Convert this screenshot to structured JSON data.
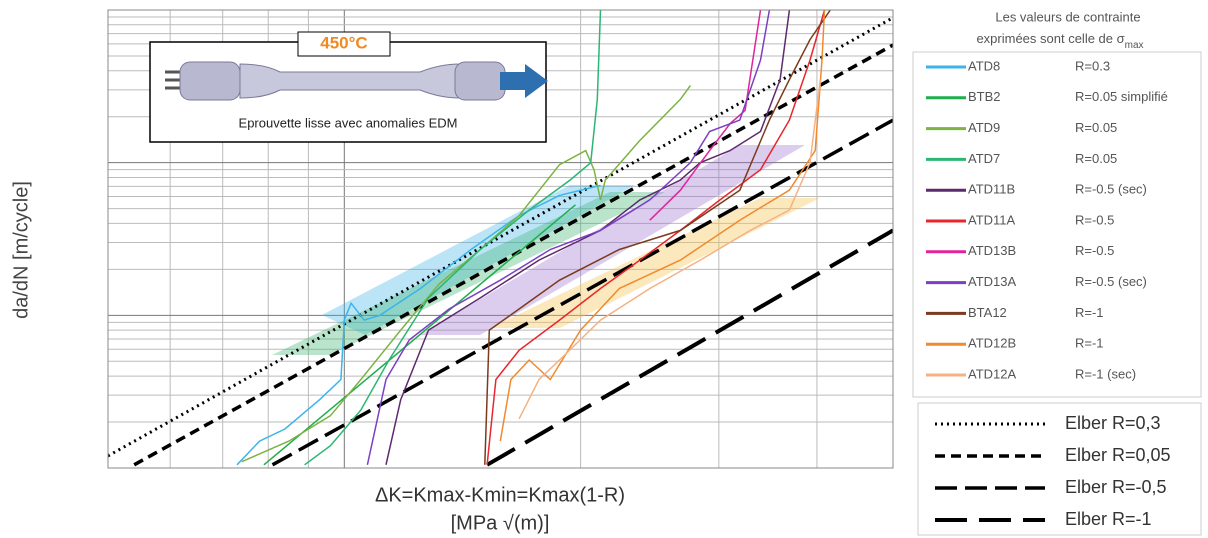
{
  "chart_data": {
    "type": "line",
    "x_label_lines": [
      "ΔK=Kmax-Kmin=Kmax(1-R)",
      "[MPa √(m)]"
    ],
    "y_label": "da/dN [m/cycle]",
    "inset_temperature": "450°C",
    "inset_caption": "Eprouvette lisse avec anomalies EDM",
    "legend_title_lines": [
      "Les valeurs de contrainte",
      "exprimées sont celle de σ"
    ],
    "legend_title_subscript": "max",
    "x_log": true,
    "y_log": true,
    "grid": true,
    "xlim": [
      5,
      50
    ],
    "ylim": [
      1e-09,
      1e-06
    ],
    "series": [
      {
        "name": "ATD8",
        "r_label": "R=0.3",
        "color": "#3bb5e8",
        "x": [
          7.3,
          7.8,
          8.4,
          9.3,
          9.9,
          10.0,
          10.2,
          10.6,
          11.1,
          12.5,
          14.5,
          16.7,
          18.8,
          21.2
        ],
        "values": [
          1.05e-09,
          1.5e-09,
          1.8e-09,
          2.8e-09,
          3.8e-09,
          9.3e-09,
          1.2e-08,
          9.3e-09,
          1e-08,
          1.5e-08,
          2.7e-08,
          4.5e-08,
          6.1e-08,
          7.1e-08
        ]
      },
      {
        "name": "BTB2",
        "r_label": "R=0.05 simplifié",
        "color": "#1fae4b",
        "x": [
          7.9,
          19.7
        ],
        "values": [
          1.05e-09,
          5.3e-08
        ]
      },
      {
        "name": "ATD9",
        "r_label": "R=0.05",
        "color": "#7cb342",
        "x": [
          7.4,
          8.5,
          9.6,
          10.5,
          11.8,
          13.2,
          14.9,
          16.7,
          18.8,
          20.3,
          20.8,
          21.2,
          21.5,
          23.8,
          26.8,
          27.6
        ],
        "values": [
          1.1e-09,
          1.5e-09,
          2.2e-09,
          3.8e-09,
          8e-09,
          1.6e-08,
          2.7e-08,
          4.5e-08,
          9.7e-08,
          1.2e-07,
          9e-08,
          5.7e-08,
          7.7e-08,
          1.4e-07,
          2.6e-07,
          3.2e-07
        ]
      },
      {
        "name": "ATD7",
        "r_label": "R=0.05",
        "color": "#2bb673",
        "x": [
          8.9,
          9.6,
          10.5,
          11.4,
          12.8,
          14.9,
          17.2,
          19.4,
          20.6,
          21.0,
          21.2
        ],
        "values": [
          1.05e-09,
          1.4e-09,
          2.4e-09,
          5.1e-09,
          1.3e-08,
          2.7e-08,
          4.9e-08,
          7.7e-08,
          1e-07,
          2.6e-07,
          1e-06
        ]
      },
      {
        "name": "ATD11B",
        "r_label": "R=-0.5 (sec)",
        "color": "#5e2a6e",
        "x": [
          11.3,
          11.8,
          12.8,
          14.9,
          17.7,
          21.2,
          23.8,
          26.8,
          28.4,
          31.0,
          33.9,
          35.9,
          36.9
        ],
        "values": [
          1.05e-09,
          2.8e-09,
          8e-09,
          1.3e-08,
          2.3e-08,
          3.6e-08,
          5.7e-08,
          7.7e-08,
          1e-07,
          1.2e-07,
          1.6e-07,
          3.5e-07,
          1e-06
        ]
      },
      {
        "name": "ATD11A",
        "r_label": "R=-0.5",
        "color": "#e8262b",
        "x": [
          15.2,
          15.6,
          16.7,
          18.8,
          21.2,
          23.8,
          26.8,
          30.1,
          33.9,
          36.9,
          39.2,
          40.9
        ],
        "values": [
          1.05e-09,
          3.8e-09,
          5.9e-09,
          9.3e-09,
          1.5e-08,
          2.3e-08,
          3.6e-08,
          5.7e-08,
          9e-08,
          1.9e-07,
          4.7e-07,
          1e-06
        ]
      },
      {
        "name": "ATD13B",
        "r_label": "R=-0.5",
        "color": "#e0249a",
        "x": [
          24.5,
          26.8,
          29.2,
          31.0,
          32.4,
          33.3,
          33.9
        ],
        "values": [
          4.2e-08,
          6.6e-08,
          1.2e-07,
          1.8e-07,
          2.2e-07,
          5.5e-07,
          1e-06
        ]
      },
      {
        "name": "ATD13A",
        "r_label": "R=-0.5 (sec)",
        "color": "#7b3fc4",
        "x": [
          10.7,
          11.3,
          12.1,
          13.6,
          15.8,
          18.3,
          21.2,
          24.5,
          27.6,
          29.2,
          31.9,
          33.9,
          34.8
        ],
        "values": [
          1.05e-09,
          3.8e-09,
          6.9e-09,
          1.1e-08,
          1.7e-08,
          2.7e-08,
          3.6e-08,
          5.7e-08,
          1e-07,
          1.6e-07,
          1.9e-07,
          4.7e-07,
          1e-06
        ]
      },
      {
        "name": "BTA12",
        "r_label": "R=-1",
        "color": "#7b3a1c",
        "x": [
          15.1,
          15.3,
          16.7,
          18.8,
          22.4,
          26.8,
          31.9,
          34.8,
          36.9,
          39.2,
          41.6
        ],
        "values": [
          1.05e-09,
          8e-09,
          1.1e-08,
          1.7e-08,
          2.7e-08,
          3.6e-08,
          6.6e-08,
          1.9e-07,
          3.5e-07,
          6.4e-07,
          1e-06
        ]
      },
      {
        "name": "ATD12B",
        "r_label": "R=-1",
        "color": "#ef8a2e",
        "x": [
          15.8,
          16.3,
          17.2,
          18.3,
          20.0,
          22.4,
          26.8,
          31.9,
          36.9,
          39.8,
          40.6,
          40.9
        ],
        "values": [
          1.5e-09,
          3.8e-09,
          5.1e-09,
          3.8e-09,
          8e-09,
          1.5e-08,
          2.3e-08,
          4.2e-08,
          6.6e-08,
          1.2e-07,
          4.7e-07,
          1e-06
        ]
      },
      {
        "name": "ATD12A",
        "r_label": "R=-1 (sec)",
        "color": "#f5b183",
        "x": [
          16.7,
          17.7,
          18.8,
          21.2,
          24.5,
          28.4,
          32.9,
          36.9,
          39.2,
          40.4
        ],
        "values": [
          2.1e-09,
          3.8e-09,
          5.1e-09,
          9.3e-09,
          1.5e-08,
          2.3e-08,
          3.6e-08,
          4.9e-08,
          1e-07,
          3.5e-07
        ]
      }
    ],
    "reference_lines": [
      {
        "name": "Elber R=0,3",
        "style": "dotted",
        "color": "#000000",
        "x": [
          5,
          50
        ],
        "values": [
          1.2e-09,
          8.9e-07
        ]
      },
      {
        "name": "Elber R=0,05",
        "style": "dashed",
        "color": "#000000",
        "x": [
          5.4,
          50
        ],
        "values": [
          1.05e-09,
          5.9e-07
        ]
      },
      {
        "name": "Elber R=-0,5",
        "style": "long-dashed",
        "color": "#000000",
        "x": [
          8.1,
          50
        ],
        "values": [
          1.05e-09,
          1.9e-07
        ]
      },
      {
        "name": "Elber R=-1",
        "style": "longer-dashed",
        "color": "#000000",
        "x": [
          15.2,
          50
        ],
        "values": [
          1.05e-09,
          3.6e-08
        ]
      }
    ]
  }
}
